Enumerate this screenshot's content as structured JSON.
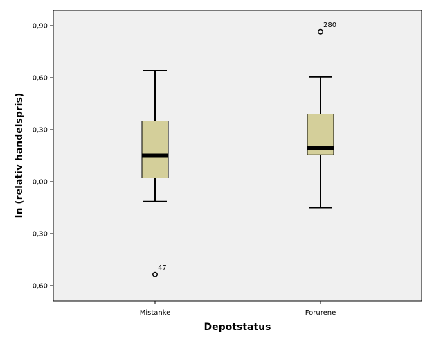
{
  "chart_data": {
    "type": "box",
    "title": "",
    "xlabel": "Depotstatus",
    "ylabel": "ln (relativ handelspris)",
    "ylim": [
      -0.69,
      0.99
    ],
    "yticks": [
      -0.6,
      -0.3,
      0.0,
      0.3,
      0.6,
      0.9
    ],
    "ytick_labels": [
      "-0,60",
      "-0,30",
      "0,00",
      "0,30",
      "0,60",
      "0,90"
    ],
    "categories": [
      "Mistanke",
      "Forurene"
    ],
    "boxes": [
      {
        "category": "Mistanke",
        "whisker_low": -0.115,
        "q1": 0.022,
        "median": 0.15,
        "q3": 0.35,
        "whisker_high": 0.64,
        "outliers": [
          {
            "label": "47",
            "value": -0.535
          }
        ]
      },
      {
        "category": "Forurene",
        "whisker_low": -0.15,
        "q1": 0.155,
        "median": 0.195,
        "q3": 0.39,
        "whisker_high": 0.605,
        "outliers": [
          {
            "label": "280",
            "value": 0.865
          }
        ]
      }
    ],
    "colors": {
      "plot_bg": "#f0f0f0",
      "box_fill": "#d4cf9a",
      "line": "#000000"
    }
  }
}
